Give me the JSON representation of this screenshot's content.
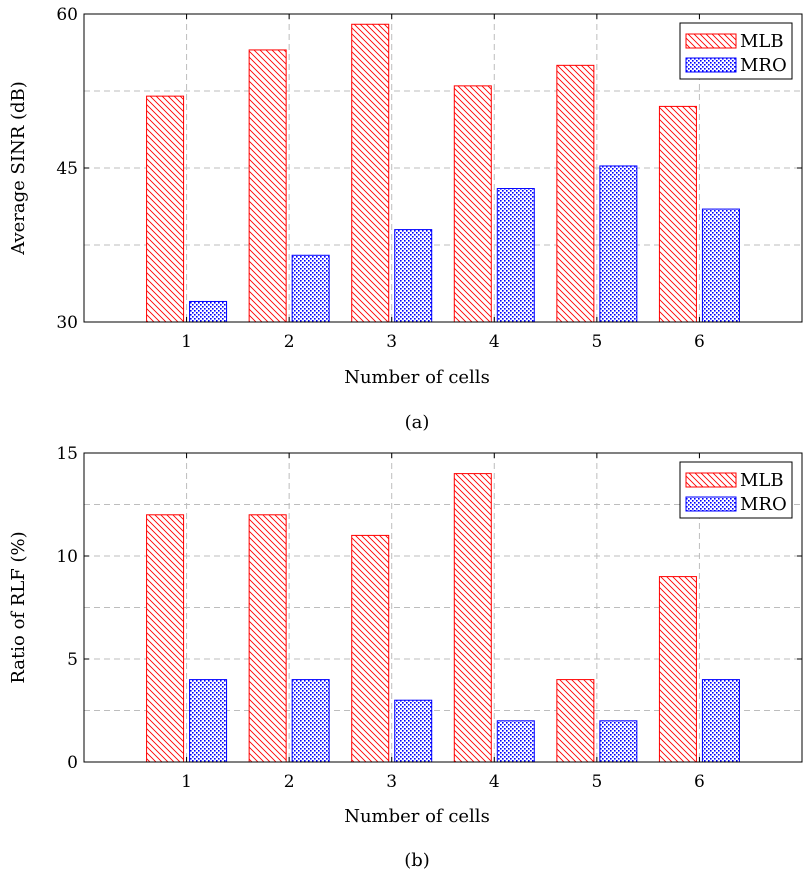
{
  "colors": {
    "mlb": "#ff0000",
    "mro": "#0000ff",
    "grid": "#bdbdbd",
    "axis": "#000000"
  },
  "chart_data": [
    {
      "type": "bar",
      "categories": [
        "1",
        "2",
        "3",
        "4",
        "5",
        "6"
      ],
      "series": [
        {
          "name": "MLB",
          "values": [
            52,
            56.5,
            59,
            53,
            55,
            51
          ],
          "pattern": "diagonal-hatch",
          "color": "#ff0000"
        },
        {
          "name": "MRO",
          "values": [
            32,
            36.5,
            39,
            43,
            45.2,
            41
          ],
          "pattern": "crosshatch-dots",
          "color": "#0000ff"
        }
      ],
      "xlabel": "Number of cells",
      "ylabel": "Average SINR (dB)",
      "ylim": [
        30,
        60
      ],
      "yticks": [
        30,
        45,
        60
      ],
      "grid": true,
      "legend": "top-right",
      "caption": "(a)"
    },
    {
      "type": "bar",
      "categories": [
        "1",
        "2",
        "3",
        "4",
        "5",
        "6"
      ],
      "series": [
        {
          "name": "MLB",
          "values": [
            12,
            12,
            11,
            14,
            4,
            9
          ],
          "pattern": "diagonal-hatch",
          "color": "#ff0000"
        },
        {
          "name": "MRO",
          "values": [
            4,
            4,
            3,
            2,
            2,
            4
          ],
          "pattern": "crosshatch-dots",
          "color": "#0000ff"
        }
      ],
      "xlabel": "Number of cells",
      "ylabel": "Ratio of RLF (%)",
      "ylim": [
        0,
        15
      ],
      "yticks": [
        0,
        5,
        10,
        15
      ],
      "grid": true,
      "legend": "top-right",
      "caption": "(b)"
    }
  ]
}
